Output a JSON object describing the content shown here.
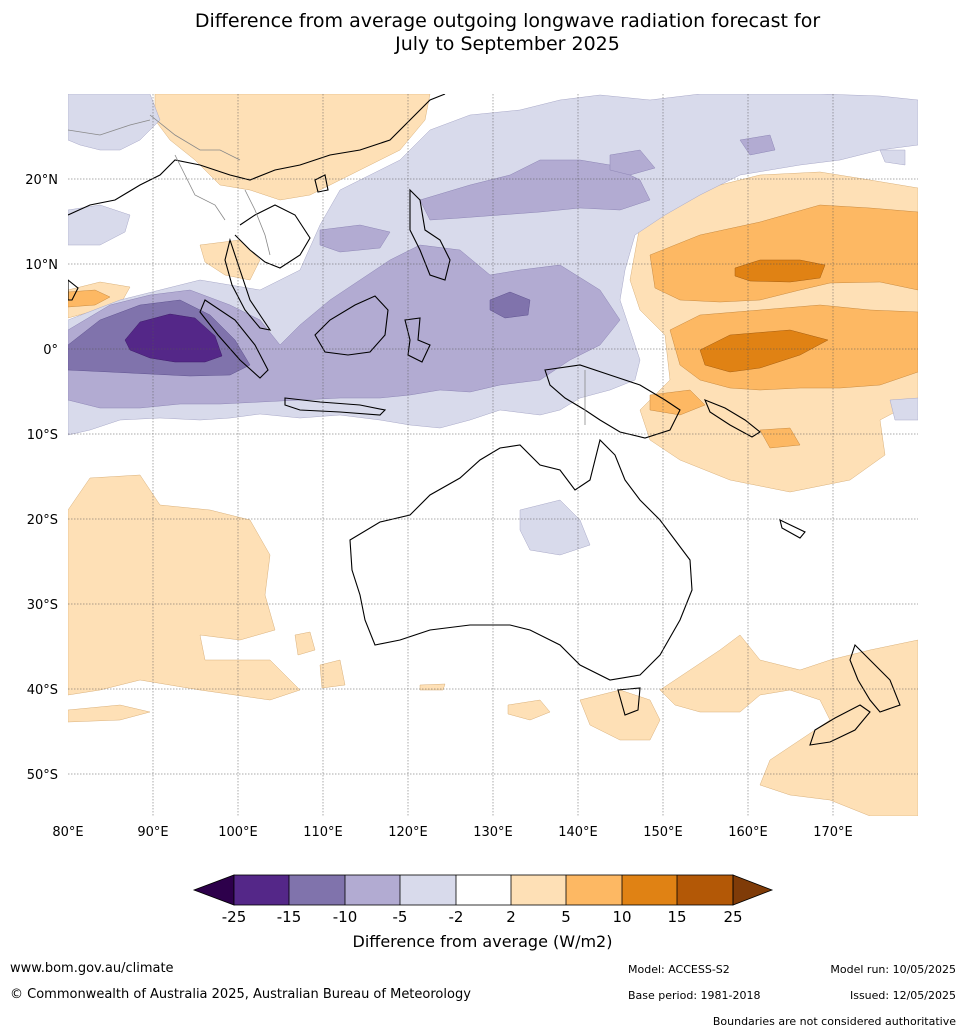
{
  "title": {
    "line1": "Difference from average outgoing longwave radiation forecast for",
    "line2": "July to September 2025"
  },
  "map": {
    "lon_labels": [
      "80°E",
      "90°E",
      "100°E",
      "110°E",
      "120°E",
      "130°E",
      "140°E",
      "150°E",
      "160°E",
      "170°E"
    ],
    "lat_labels": [
      "20°N",
      "10°N",
      "0°",
      "10°S",
      "20°S",
      "30°S",
      "40°S",
      "50°S"
    ],
    "region": "Indo-Pacific and Australia",
    "colors": {
      "lt_-25": "#2d004b",
      "-25_-15": "#542788",
      "-15_-10": "#8073ac",
      "-10_-5": "#b2abd2",
      "-5_-2": "#d8daeb",
      "-2_2": "#ffffff",
      "2_5": "#fee0b6",
      "5_10": "#fdb863",
      "10_15": "#e08214",
      "15_25": "#b35806",
      "gt_25": "#7f3b08"
    }
  },
  "colorbar": {
    "ticks": [
      "-25",
      "-15",
      "-10",
      "-5",
      "-2",
      "2",
      "5",
      "10",
      "15",
      "25"
    ],
    "title": "Difference from average (W/m2)"
  },
  "footer": {
    "website": "www.bom.gov.au/climate",
    "copyright": "© Commonwealth of Australia 2025, Australian Bureau of Meteorology",
    "model": "Model: ACCESS-S2",
    "base_period": "Base period: 1981-2018",
    "model_run": "Model run: 10/05/2025",
    "issued": "Issued: 12/05/2025",
    "disclaimer": "Boundaries are not considered authoritative"
  }
}
